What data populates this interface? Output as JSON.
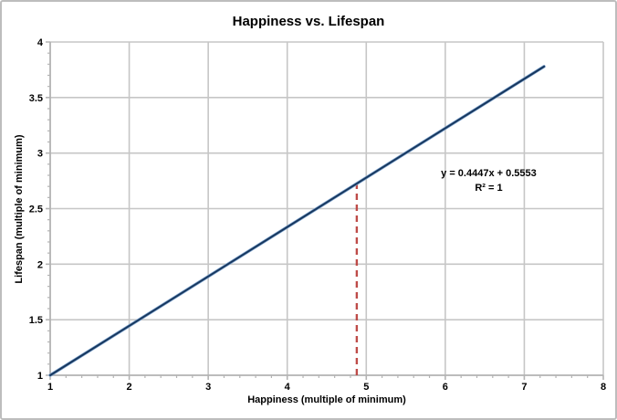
{
  "figure": {
    "background": "#ffffff",
    "border_color": "#bdbdbd"
  },
  "chart_data": {
    "type": "line",
    "title": "Happiness vs. Lifespan",
    "xlabel": "Happiness (multiple of minimum)",
    "ylabel": "Lifespan (multiple of minimum)",
    "xlim": [
      1,
      8
    ],
    "ylim": [
      1,
      4
    ],
    "x_major_ticks": [
      1,
      2,
      3,
      4,
      5,
      6,
      7,
      8
    ],
    "y_major_ticks": [
      1,
      1.5,
      2,
      2.5,
      3,
      3.5,
      4
    ],
    "x_minor_step": 0.2,
    "y_minor_step": 0.1,
    "grid": true,
    "legend": "none",
    "colors": {
      "grid": "#c6c6c6",
      "axis": "#b3b3b3",
      "tick_text": "#000000",
      "series": "#7da2cc",
      "trendline": "#17375e",
      "marker": "#be4b48"
    },
    "series": [
      {
        "name": "data",
        "x": [
          1,
          7.25
        ],
        "y": [
          1,
          3.7794
        ],
        "color": "#7da2cc",
        "width": 3.4
      },
      {
        "name": "linear-trendline",
        "x": [
          1,
          7.25
        ],
        "y": [
          1,
          3.7794
        ],
        "color": "#17375e",
        "width": 2
      }
    ],
    "equation": "y = 0.4447x + 0.5553",
    "r_squared": "R² = 1",
    "annotation": {
      "x": 6.55,
      "y": 2.79
    },
    "marker_line": {
      "x": 4.88,
      "y_bottom": 1,
      "y_top": 2.7254,
      "color": "#be4b48",
      "dash": "7 5",
      "width": 2.4
    }
  }
}
